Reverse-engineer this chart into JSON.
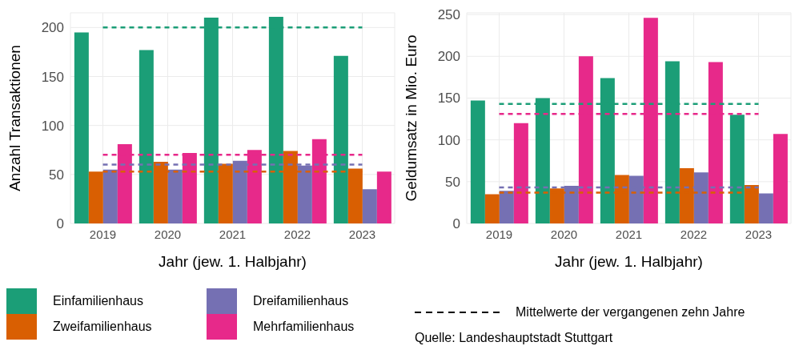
{
  "chart_data": [
    {
      "type": "bar",
      "xlabel": "Jahr (jew. 1. Halbjahr)",
      "ylabel": "Anzahl Transaktionen",
      "categories": [
        "2019",
        "2020",
        "2021",
        "2022",
        "2023"
      ],
      "ylim": [
        0,
        215
      ],
      "yticks": [
        0,
        50,
        100,
        150,
        200
      ],
      "grid": true,
      "legend": "bottom",
      "series": [
        {
          "name": "Einfamilienhaus",
          "color": "#1b9e77",
          "values": [
            195,
            177,
            210,
            211,
            171
          ]
        },
        {
          "name": "Zweifamilienhaus",
          "color": "#d95f02",
          "values": [
            53,
            63,
            61,
            74,
            56
          ]
        },
        {
          "name": "Dreifamilienhaus",
          "color": "#7570b3",
          "values": [
            55,
            55,
            64,
            59,
            35
          ]
        },
        {
          "name": "Mehrfamilienhaus",
          "color": "#e7298a",
          "values": [
            81,
            72,
            75,
            86,
            53
          ]
        }
      ],
      "ref_lines": [
        {
          "axis": "y",
          "value": 200,
          "color": "#1b9e77",
          "line_style": "dashed"
        },
        {
          "axis": "y",
          "value": 70,
          "color": "#e7298a",
          "line_style": "dashed"
        },
        {
          "axis": "y",
          "value": 60,
          "color": "#7570b3",
          "line_style": "dashed"
        },
        {
          "axis": "y",
          "value": 53,
          "color": "#d95f02",
          "line_style": "dashed"
        }
      ],
      "annotations": [
        "Mittelwerte der vergangenen zehn Jahre",
        "Quelle: Landeshauptstadt Stuttgart"
      ]
    },
    {
      "type": "bar",
      "xlabel": "Jahr (jew. 1. Halbjahr)",
      "ylabel": "Geldumsatz in Mio. Euro",
      "categories": [
        "2019",
        "2020",
        "2021",
        "2022",
        "2023"
      ],
      "ylim": [
        0,
        252
      ],
      "yticks": [
        0,
        50,
        100,
        150,
        200,
        250
      ],
      "grid": true,
      "series": [
        {
          "color": "#1b9e77",
          "values": [
            147,
            150,
            174,
            194,
            130
          ]
        },
        {
          "color": "#d95f02",
          "values": [
            35,
            42,
            58,
            66,
            46
          ]
        },
        {
          "color": "#7570b3",
          "values": [
            39,
            45,
            57,
            61,
            36
          ]
        },
        {
          "color": "#e7298a",
          "values": [
            120,
            200,
            246,
            193,
            107
          ]
        }
      ],
      "ref_lines": [
        {
          "axis": "y",
          "value": 143,
          "color": "#1b9e77",
          "line_style": "dashed"
        },
        {
          "axis": "y",
          "value": 131,
          "color": "#e7298a",
          "line_style": "dashed"
        },
        {
          "axis": "y",
          "value": 43,
          "color": "#7570b3",
          "line_style": "dashed"
        },
        {
          "axis": "y",
          "value": 37,
          "color": "#d95f02",
          "line_style": "dashed"
        }
      ]
    }
  ]
}
